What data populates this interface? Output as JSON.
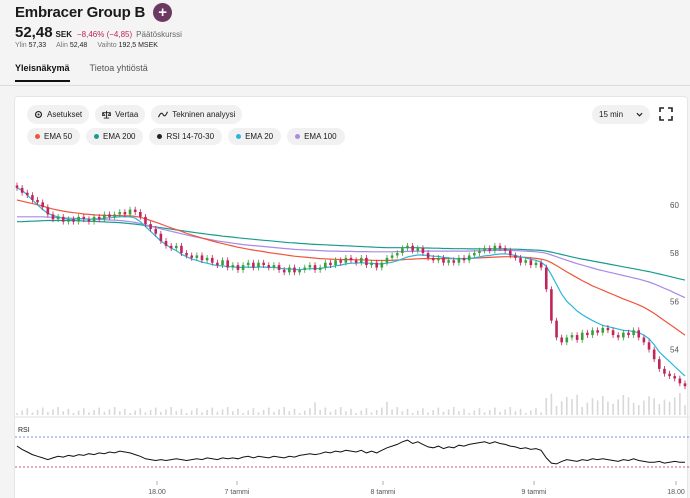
{
  "header": {
    "title": "Embracer Group B",
    "add_icon": "plus-icon",
    "price": "52,48",
    "currency": "SEK",
    "change": "−8,46% (−4,85)",
    "status": "Päätöskurssi",
    "stats": {
      "high_label": "Ylin",
      "high": "57,33",
      "low_label": "Alin",
      "low": "52,48",
      "volume_label": "Vaihto",
      "volume": "192,5 MSEK"
    }
  },
  "tabs": [
    {
      "label": "Yleisnäkymä",
      "active": true
    },
    {
      "label": "Tietoa yhtiöstä",
      "active": false
    }
  ],
  "toolbar": {
    "settings": "Asetukset",
    "compare": "Vertaa",
    "technical": "Tekninen analyysi",
    "interval": "15 min"
  },
  "legend": [
    {
      "label": "EMA 50",
      "color": "#f0553c"
    },
    {
      "label": "EMA 200",
      "color": "#1a9c8c"
    },
    {
      "label": "RSI 14-70-30",
      "color": "#222222"
    },
    {
      "label": "EMA 20",
      "color": "#29b6dd"
    },
    {
      "label": "EMA 100",
      "color": "#a98ae6"
    }
  ],
  "chart_data": {
    "type": "candlestick",
    "y_ticks": [
      "60",
      "58",
      "56",
      "54"
    ],
    "x_ticks": [
      "18.00",
      "7 tammi",
      "8 tammi",
      "9 tammi",
      "18.00"
    ],
    "ylim": [
      52.2,
      61.4
    ],
    "closes": [
      60.7,
      60.5,
      60.4,
      60.2,
      60.1,
      59.9,
      59.6,
      59.4,
      59.5,
      59.3,
      59.4,
      59.3,
      59.5,
      59.4,
      59.3,
      59.5,
      59.4,
      59.6,
      59.5,
      59.6,
      59.7,
      59.6,
      59.8,
      59.7,
      59.5,
      59.2,
      59.0,
      58.8,
      58.5,
      58.3,
      58.2,
      58.3,
      58.0,
      57.9,
      57.8,
      57.9,
      57.7,
      57.8,
      57.6,
      57.5,
      57.7,
      57.4,
      57.5,
      57.3,
      57.5,
      57.6,
      57.4,
      57.6,
      57.5,
      57.4,
      57.5,
      57.3,
      57.2,
      57.4,
      57.2,
      57.3,
      57.4,
      57.5,
      57.3,
      57.4,
      57.6,
      57.5,
      57.7,
      57.6,
      57.8,
      57.7,
      57.6,
      57.8,
      57.5,
      57.6,
      57.4,
      57.6,
      57.8,
      57.9,
      58.0,
      58.2,
      58.3,
      58.1,
      58.2,
      58.0,
      57.8,
      57.7,
      57.8,
      57.6,
      57.7,
      57.6,
      57.8,
      57.7,
      57.9,
      58.0,
      58.1,
      58.2,
      58.1,
      58.3,
      58.2,
      58.1,
      57.9,
      57.8,
      57.6,
      57.7,
      57.5,
      57.6,
      57.4,
      56.5,
      55.2,
      54.5,
      54.3,
      54.5,
      54.6,
      54.4,
      54.7,
      54.6,
      54.8,
      54.7,
      54.9,
      54.8,
      54.6,
      54.5,
      54.7,
      54.6,
      54.8,
      54.5,
      54.3,
      54.0,
      53.6,
      53.2,
      53.0,
      52.9,
      52.8,
      52.6,
      52.48
    ],
    "ema20": [
      60.7,
      60.6,
      60.4,
      60.2,
      60.0,
      59.8,
      59.65,
      59.55,
      59.5,
      59.45,
      59.4,
      59.4,
      59.42,
      59.42,
      59.4,
      59.42,
      59.42,
      59.45,
      59.46,
      59.48,
      59.5,
      59.5,
      59.5,
      59.45,
      59.3,
      59.1,
      58.9,
      58.7,
      58.5,
      58.35,
      58.2,
      58.1,
      57.95,
      57.85,
      57.75,
      57.7,
      57.62,
      57.58,
      57.52,
      57.48,
      57.47,
      57.44,
      57.43,
      57.4,
      57.41,
      57.42,
      57.4,
      57.42,
      57.42,
      57.4,
      57.41,
      57.38,
      57.34,
      57.35,
      57.32,
      57.31,
      57.33,
      57.35,
      57.35,
      57.36,
      57.4,
      57.42,
      57.47,
      57.5,
      57.55,
      57.58,
      57.58,
      57.6,
      57.58,
      57.58,
      57.55,
      57.55,
      57.58,
      57.62,
      57.68,
      57.76,
      57.84,
      57.88,
      57.92,
      57.92,
      57.9,
      57.87,
      57.86,
      57.82,
      57.8,
      57.77,
      57.77,
      57.76,
      57.78,
      57.8,
      57.84,
      57.88,
      57.9,
      57.94,
      57.96,
      57.97,
      57.94,
      57.9,
      57.84,
      57.8,
      57.74,
      57.7,
      57.62,
      57.45,
      57.1,
      56.7,
      56.3,
      56.0,
      55.8,
      55.6,
      55.45,
      55.32,
      55.2,
      55.1,
      55.0,
      54.95,
      54.9,
      54.85,
      54.8,
      54.78,
      54.75,
      54.7,
      54.6,
      54.45,
      54.2,
      53.9,
      53.7,
      53.5,
      53.3,
      53.1,
      52.9
    ],
    "ema50": [
      60.2,
      60.15,
      60.1,
      60.05,
      60.0,
      59.95,
      59.88,
      59.82,
      59.78,
      59.74,
      59.7,
      59.67,
      59.65,
      59.62,
      59.6,
      59.58,
      59.57,
      59.56,
      59.55,
      59.55,
      59.55,
      59.54,
      59.54,
      59.52,
      59.48,
      59.42,
      59.35,
      59.28,
      59.2,
      59.12,
      59.04,
      58.97,
      58.9,
      58.82,
      58.75,
      58.69,
      58.62,
      58.56,
      58.5,
      58.44,
      58.39,
      58.34,
      58.29,
      58.24,
      58.2,
      58.16,
      58.12,
      58.09,
      58.06,
      58.02,
      57.99,
      57.96,
      57.93,
      57.9,
      57.87,
      57.85,
      57.83,
      57.81,
      57.79,
      57.77,
      57.76,
      57.75,
      57.74,
      57.73,
      57.73,
      57.73,
      57.72,
      57.72,
      57.71,
      57.7,
      57.69,
      57.69,
      57.69,
      57.7,
      57.71,
      57.72,
      57.74,
      57.75,
      57.76,
      57.77,
      57.77,
      57.77,
      57.77,
      57.77,
      57.77,
      57.77,
      57.77,
      57.77,
      57.78,
      57.79,
      57.8,
      57.81,
      57.82,
      57.83,
      57.84,
      57.85,
      57.85,
      57.84,
      57.83,
      57.82,
      57.8,
      57.78,
      57.75,
      57.7,
      57.6,
      57.48,
      57.35,
      57.22,
      57.1,
      56.98,
      56.86,
      56.75,
      56.64,
      56.55,
      56.46,
      56.37,
      56.28,
      56.19,
      56.1,
      56.02,
      55.94,
      55.85,
      55.75,
      55.63,
      55.5,
      55.35,
      55.2,
      55.05,
      54.9,
      54.75,
      54.6
    ],
    "ema100": [
      59.5,
      59.5,
      59.5,
      59.5,
      59.5,
      59.5,
      59.49,
      59.48,
      59.47,
      59.46,
      59.45,
      59.44,
      59.43,
      59.42,
      59.41,
      59.4,
      59.39,
      59.38,
      59.37,
      59.36,
      59.35,
      59.33,
      59.3,
      59.27,
      59.22,
      59.17,
      59.12,
      59.06,
      59.0,
      58.95,
      58.9,
      58.85,
      58.8,
      58.75,
      58.7,
      58.66,
      58.62,
      58.58,
      58.54,
      58.5,
      58.47,
      58.44,
      58.41,
      58.38,
      58.35,
      58.33,
      58.31,
      58.29,
      58.27,
      58.25,
      58.23,
      58.21,
      58.19,
      58.17,
      58.15,
      58.14,
      58.13,
      58.12,
      58.11,
      58.1,
      58.09,
      58.08,
      58.08,
      58.07,
      58.07,
      58.07,
      58.06,
      58.06,
      58.06,
      58.05,
      58.05,
      58.05,
      58.05,
      58.05,
      58.06,
      58.06,
      58.07,
      58.07,
      58.08,
      58.08,
      58.08,
      58.08,
      58.08,
      58.08,
      58.08,
      58.08,
      58.08,
      58.08,
      58.08,
      58.09,
      58.09,
      58.1,
      58.1,
      58.11,
      58.11,
      58.11,
      58.11,
      58.1,
      58.09,
      58.08,
      58.07,
      58.05,
      58.03,
      57.99,
      57.92,
      57.85,
      57.77,
      57.7,
      57.63,
      57.56,
      57.5,
      57.44,
      57.38,
      57.32,
      57.27,
      57.22,
      57.17,
      57.12,
      57.07,
      57.02,
      56.97,
      56.92,
      56.86,
      56.8,
      56.72,
      56.63,
      56.54,
      56.45,
      56.35,
      56.25,
      56.15
    ],
    "ema200": [
      59.3,
      59.3,
      59.31,
      59.32,
      59.33,
      59.34,
      59.35,
      59.35,
      59.35,
      59.35,
      59.35,
      59.34,
      59.34,
      59.33,
      59.32,
      59.31,
      59.3,
      59.29,
      59.28,
      59.27,
      59.26,
      59.24,
      59.22,
      59.2,
      59.17,
      59.14,
      59.11,
      59.08,
      59.05,
      59.02,
      58.99,
      58.96,
      58.93,
      58.9,
      58.87,
      58.84,
      58.81,
      58.78,
      58.75,
      58.73,
      58.7,
      58.68,
      58.66,
      58.63,
      58.61,
      58.59,
      58.57,
      58.55,
      58.53,
      58.51,
      58.49,
      58.47,
      58.45,
      58.43,
      58.42,
      58.4,
      58.39,
      58.37,
      58.36,
      58.35,
      58.34,
      58.33,
      58.32,
      58.31,
      58.3,
      58.29,
      58.28,
      58.27,
      58.26,
      58.25,
      58.24,
      58.23,
      58.22,
      58.22,
      58.22,
      58.22,
      58.22,
      58.22,
      58.22,
      58.21,
      58.21,
      58.2,
      58.2,
      58.19,
      58.19,
      58.18,
      58.18,
      58.18,
      58.17,
      58.17,
      58.17,
      58.17,
      58.17,
      58.17,
      58.17,
      58.17,
      58.16,
      58.16,
      58.15,
      58.14,
      58.13,
      58.12,
      58.11,
      58.08,
      58.04,
      57.99,
      57.94,
      57.89,
      57.84,
      57.79,
      57.75,
      57.71,
      57.67,
      57.63,
      57.59,
      57.55,
      57.51,
      57.47,
      57.43,
      57.39,
      57.35,
      57.31,
      57.27,
      57.23,
      57.18,
      57.13,
      57.08,
      57.03,
      56.98,
      56.93,
      56.88
    ],
    "rsi": [
      52,
      48,
      45,
      42,
      40,
      38,
      36,
      38,
      40,
      39,
      41,
      40,
      42,
      41,
      43,
      42,
      44,
      43,
      45,
      44,
      46,
      45,
      44,
      42,
      40,
      37,
      36,
      35,
      36,
      35,
      36,
      37,
      36,
      35,
      36,
      37,
      36,
      38,
      37,
      36,
      38,
      37,
      38,
      37,
      39,
      40,
      38,
      40,
      39,
      38,
      40,
      39,
      38,
      40,
      39,
      41,
      42,
      43,
      42,
      43,
      45,
      44,
      46,
      45,
      47,
      46,
      45,
      47,
      44,
      46,
      44,
      47,
      50,
      52,
      54,
      57,
      59,
      55,
      57,
      54,
      51,
      50,
      52,
      49,
      51,
      50,
      53,
      52,
      54,
      55,
      56,
      57,
      55,
      57,
      55,
      54,
      52,
      51,
      49,
      50,
      48,
      49,
      47,
      38,
      32,
      31,
      34,
      36,
      35,
      34,
      36,
      35,
      37,
      36,
      37,
      36,
      35,
      34,
      36,
      35,
      37,
      35,
      34,
      33,
      33,
      34,
      32,
      33,
      34,
      33,
      33
    ]
  },
  "rsi_label": "RSI"
}
